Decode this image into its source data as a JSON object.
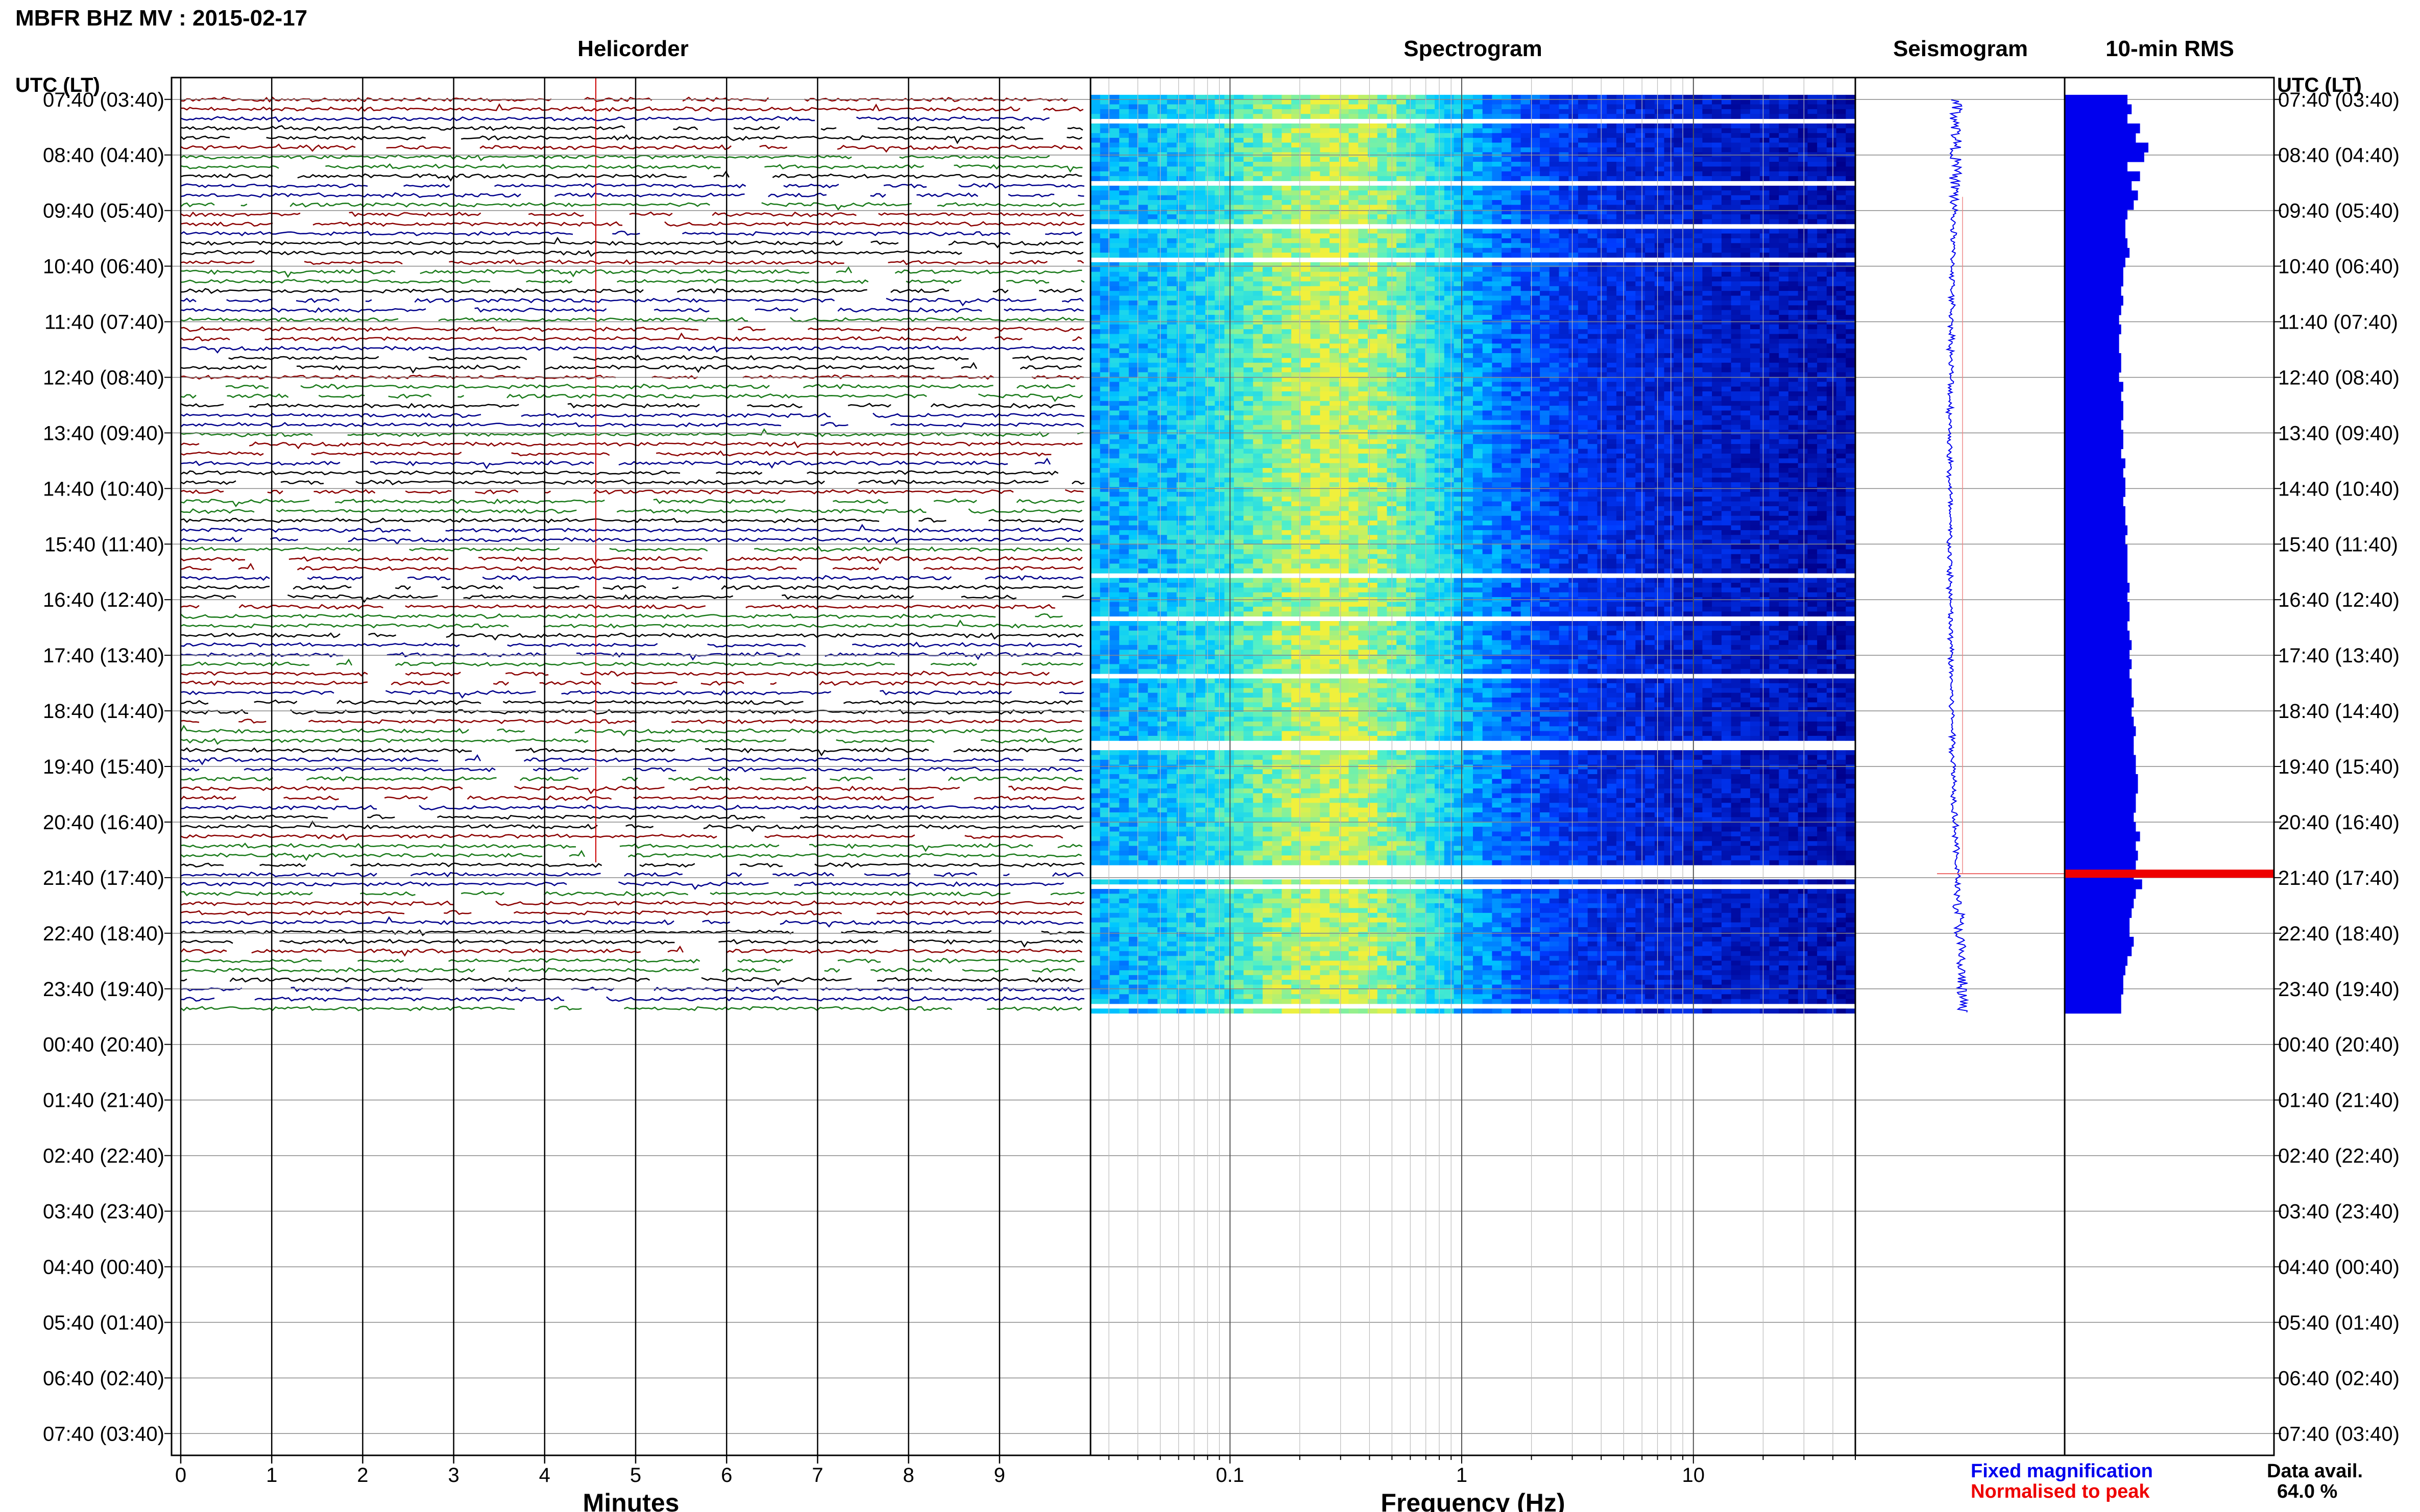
{
  "header": {
    "title": "MBFR BHZ MV : 2015-02-17"
  },
  "panels": {
    "helicorder": "Helicorder",
    "spectrogram": "Spectrogram",
    "seismogram": "Seismogram",
    "rms": "10-min RMS"
  },
  "axes": {
    "left_label": "UTC (LT)",
    "right_label": "UTC (LT)",
    "minutes_label": "Minutes",
    "frequency_label": "Frequency (Hz)"
  },
  "footer": {
    "fixed_magnification": "Fixed magnification",
    "normalised": "Normalised to peak",
    "data_avail_label": "Data avail.",
    "data_avail_value": "64.0 %"
  },
  "colors": {
    "blue": "#0000ee",
    "red": "#ee0000",
    "trace_colors": [
      "#000000",
      "#8b0000",
      "#00008b",
      "#1a7a1a"
    ],
    "grid": "#000000"
  },
  "chart_data": {
    "type": "heatmap",
    "station": "MBFR",
    "channel": "BHZ",
    "network": "MV",
    "date": "2015-02-17",
    "time_labels": [
      "07:40 (03:40)",
      "08:40 (04:40)",
      "09:40 (05:40)",
      "10:40 (06:40)",
      "11:40 (07:40)",
      "12:40 (08:40)",
      "13:40 (09:40)",
      "14:40 (10:40)",
      "15:40 (11:40)",
      "16:40 (12:40)",
      "17:40 (13:40)",
      "18:40 (14:40)",
      "19:40 (15:40)",
      "20:40 (16:40)",
      "21:40 (17:40)",
      "22:40 (18:40)",
      "23:40 (19:40)",
      "00:40 (20:40)",
      "01:40 (21:40)",
      "02:40 (22:40)",
      "03:40 (23:40)",
      "04:40 (00:40)",
      "05:40 (01:40)",
      "06:40 (02:40)",
      "07:40 (03:40)"
    ],
    "minutes_ticks": [
      "0",
      "1",
      "2",
      "3",
      "4",
      "5",
      "6",
      "7",
      "8",
      "9"
    ],
    "frequency_ticks": [
      "0.1",
      "1",
      "10"
    ],
    "frequency_range_hz": [
      0.025,
      50
    ],
    "frequency_scale": "log",
    "data_rows_hours": 16,
    "total_rows_hours": 24,
    "rms_spike_time": "21:10",
    "rms_levels": [
      0.3,
      0.32,
      0.3,
      0.36,
      0.34,
      0.4,
      0.38,
      0.3,
      0.36,
      0.32,
      0.35,
      0.33,
      0.3,
      0.29,
      0.29,
      0.3,
      0.31,
      0.29,
      0.28,
      0.28,
      0.27,
      0.28,
      0.27,
      0.26,
      0.27,
      0.26,
      0.26,
      0.27,
      0.27,
      0.26,
      0.28,
      0.27,
      0.28,
      0.28,
      0.27,
      0.28,
      0.28,
      0.27,
      0.29,
      0.28,
      0.29,
      0.29,
      0.28,
      0.29,
      0.29,
      0.3,
      0.29,
      0.3,
      0.3,
      0.3,
      0.3,
      0.31,
      0.3,
      0.31,
      0.31,
      0.3,
      0.31,
      0.32,
      0.31,
      0.32,
      0.31,
      0.32,
      0.32,
      0.33,
      0.32,
      0.33,
      0.34,
      0.33,
      0.33,
      0.34,
      0.34,
      0.35,
      0.35,
      0.34,
      0.34,
      0.33,
      0.34,
      0.36,
      0.34,
      0.35,
      0.34,
      0.33,
      0.37,
      0.34,
      0.33,
      0.32,
      0.31,
      0.31,
      0.33,
      0.32,
      0.3,
      0.29,
      0.28,
      0.28,
      0.27,
      0.27
    ],
    "rms_ylim": [
      0,
      1
    ]
  }
}
